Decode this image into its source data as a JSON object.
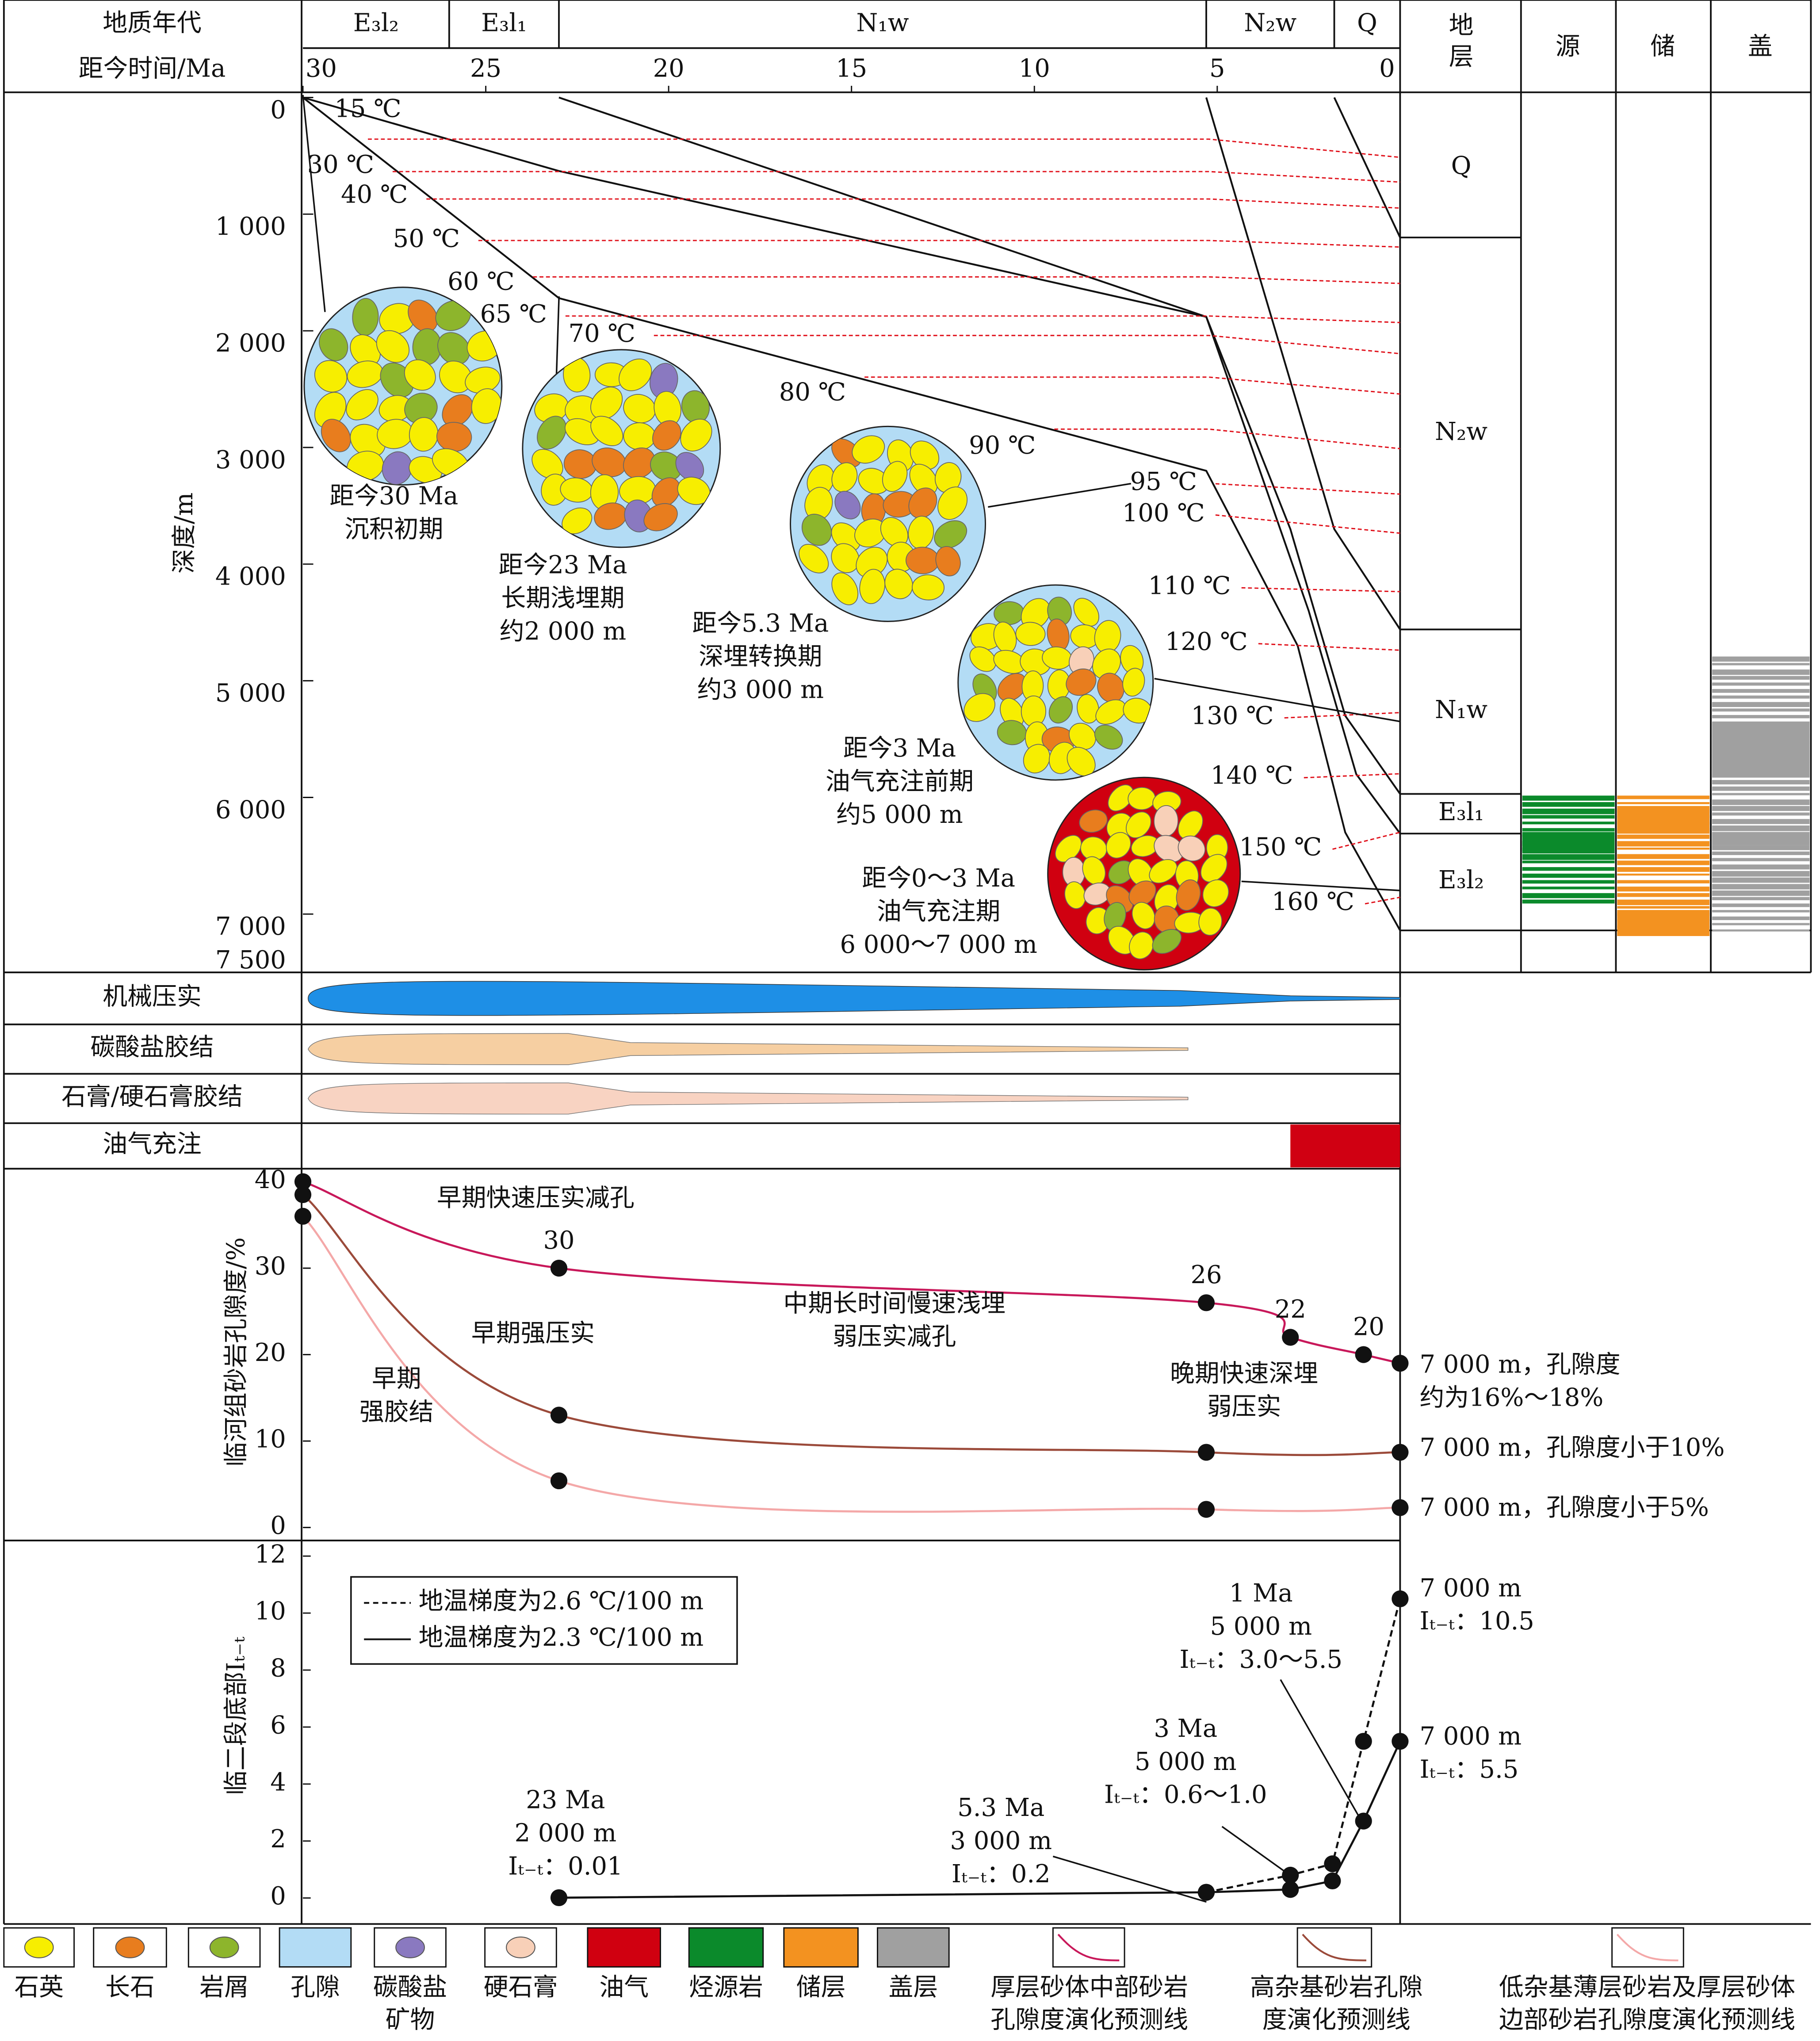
{
  "chart_data": [
    {
      "type": "burial",
      "header_labels": [
        "地质年代",
        "距今时间/Ma"
      ],
      "periods": [
        {
          "label": "E₃l₂",
          "range": [
            30,
            26
          ]
        },
        {
          "label": "E₃l₁",
          "range": [
            26,
            23
          ]
        },
        {
          "label": "N₁w",
          "range": [
            23,
            5.3
          ]
        },
        {
          "label": "N₂w",
          "range": [
            5.3,
            1.8
          ]
        },
        {
          "label": "Q",
          "range": [
            1.8,
            0
          ]
        }
      ],
      "xlim": [
        30,
        0
      ],
      "xticks": [
        30,
        25,
        20,
        15,
        10,
        5,
        0
      ],
      "ylabel": "深度/m",
      "ylim": [
        0,
        7500
      ],
      "yticks": [
        0,
        {
          "value": 1000,
          "label": "1 000"
        },
        {
          "value": 2000,
          "label": "2 000"
        },
        {
          "value": 3000,
          "label": "3 000"
        },
        {
          "value": 4000,
          "label": "4 000"
        },
        {
          "value": 5000,
          "label": "5 000"
        },
        {
          "value": 6000,
          "label": "6 000"
        },
        {
          "value": 7000,
          "label": "7 000"
        },
        {
          "value": 7500,
          "label": "7 500"
        }
      ],
      "series": [
        {
          "x": [
            1.8,
            0
          ],
          "y": [
            0,
            1200
          ]
        },
        {
          "x": [
            5.3,
            1.8,
            0
          ],
          "y": [
            0,
            3700,
            4560
          ]
        },
        {
          "x": [
            23,
            5.3,
            3,
            1.5,
            0
          ],
          "y": [
            0,
            1880,
            3700,
            5300,
            5970
          ]
        },
        {
          "x": [
            30,
            23,
            5.3,
            2.5,
            1.2,
            0
          ],
          "y": [
            0,
            630,
            1880,
            4400,
            5800,
            6310
          ]
        },
        {
          "x": [
            30,
            23,
            5.3,
            2.8,
            1.5,
            0
          ],
          "y": [
            0,
            1720,
            3200,
            4700,
            6300,
            7140
          ]
        }
      ],
      "isotherm_color": "#e0101a",
      "isotherms": [
        {
          "label": "15 ℃",
          "depths": [
            357,
            513
          ]
        },
        {
          "label": "30 ℃",
          "depths": [
            635,
            725
          ]
        },
        {
          "label": "40 ℃",
          "depths": [
            870,
            948
          ]
        },
        {
          "label": "50 ℃",
          "depths": [
            1226,
            1282
          ]
        },
        {
          "label": "60 ℃",
          "depths": [
            1538,
            1594
          ]
        },
        {
          "label": "65 ℃",
          "depths": [
            1873,
            1929
          ]
        },
        {
          "label": "70 ℃",
          "depths": [
            2040,
            2196
          ]
        },
        {
          "label": "80 ℃",
          "depths": [
            2397,
            2542
          ]
        },
        {
          "label": "90 ℃",
          "depths": [
            2843,
            3010
          ]
        },
        {
          "label": "95 ℃",
          "depths": [
            3311,
            3400
          ]
        },
        {
          "label": "100 ℃",
          "depths": [
            3579,
            3735
          ]
        },
        {
          "label": "110 ℃",
          "depths": [
            4203,
            4236
          ]
        },
        {
          "label": "120 ℃",
          "depths": [
            4682,
            4738
          ]
        },
        {
          "label": "130 ℃",
          "depths": [
            5318,
            5273
          ]
        },
        {
          "label": "140 ℃",
          "depths": [
            5831,
            5797
          ]
        },
        {
          "label": "150 ℃",
          "depths": [
            6444,
            6299
          ]
        },
        {
          "label": "160 ℃",
          "depths": [
            6912,
            6856
          ]
        }
      ],
      "samples": [
        {
          "caption": [
            "距今30 Ma",
            "沉积初期"
          ]
        },
        {
          "caption": [
            "距今23 Ma",
            "长期浅埋期",
            "约2 000 m"
          ]
        },
        {
          "caption": [
            "距今5.3 Ma",
            "深埋转换期",
            "约3 000 m"
          ]
        },
        {
          "caption": [
            "距今3 Ma",
            "油气充注前期",
            "约5 000 m"
          ]
        },
        {
          "caption": [
            "距今0～3 Ma",
            "油气充注期",
            "6 000～7 000 m"
          ]
        }
      ],
      "strata_header": [
        "地",
        "层"
      ],
      "columns": [
        "源",
        "储",
        "盖"
      ],
      "strata": [
        {
          "label": "Q",
          "range": [
            0,
            1200
          ]
        },
        {
          "label": "N₂w",
          "range": [
            1200,
            4560
          ]
        },
        {
          "label": "N₁w",
          "range": [
            4560,
            5970
          ]
        },
        {
          "label": "E₃l₁",
          "range": [
            5970,
            6310
          ]
        },
        {
          "label": "E₃l₂",
          "range": [
            6310,
            7140
          ]
        }
      ]
    },
    {
      "type": "process",
      "rows": [
        {
          "label": "机械压实",
          "span": [
            30,
            0
          ],
          "color": "#1e8fe6"
        },
        {
          "label": "碳酸盐胶结",
          "span": [
            30,
            5.8
          ],
          "color": "#f6cfa2"
        },
        {
          "label": "石膏/硬石膏胶结",
          "span": [
            30,
            5.8
          ],
          "color": "#f8d3c2"
        },
        {
          "label": "油气充注",
          "span": [
            3,
            0
          ],
          "color": "#d00012"
        }
      ]
    },
    {
      "type": "line",
      "ylabel": "临河组砂岩孔隙度/%",
      "xlim": [
        30,
        0
      ],
      "ylim": [
        0,
        40
      ],
      "yticks": [
        0,
        10,
        20,
        30,
        40
      ],
      "series": [
        {
          "color": "#c8185a",
          "x": [
            30,
            23,
            5.3,
            3,
            1,
            0
          ],
          "values": [
            40,
            30,
            26,
            22,
            20,
            19
          ],
          "value_labels": [
            null,
            "30",
            "26",
            "22",
            "20",
            null
          ]
        },
        {
          "color": "#9b4a3a",
          "x": [
            30,
            23,
            5.3,
            0
          ],
          "values": [
            38.5,
            13,
            8.7,
            8.7
          ]
        },
        {
          "color": "#f4a8a8",
          "x": [
            30,
            23,
            5.3,
            0
          ],
          "values": [
            36,
            5.4,
            2.1,
            2.3
          ]
        }
      ],
      "annotations": [
        [
          "早期快速压实减孔"
        ],
        [
          "早期强压实"
        ],
        [
          "早期",
          "强胶结"
        ],
        [
          "中期长时间慢速浅埋",
          "弱压实减孔"
        ],
        [
          "晚期快速深埋",
          "弱压实"
        ],
        [
          "7 000 m，孔隙度",
          "约为16%～18%"
        ],
        [
          "7 000 m，孔隙度小于10%"
        ],
        [
          "7 000 m，孔隙度小于5%"
        ]
      ]
    },
    {
      "type": "line",
      "ylabel": "临二段底部Iₜ₋ₜ",
      "xlim": [
        30,
        0
      ],
      "ylim": [
        0,
        12
      ],
      "yticks": [
        0,
        2,
        4,
        6,
        8,
        10,
        12
      ],
      "series": [
        {
          "name": "地温梯度为2.6 ℃/100 m",
          "line_style": "dashed",
          "color": "#111111",
          "x": [
            5.3,
            3,
            1.85,
            1,
            0
          ],
          "values": [
            0.2,
            0.8,
            1.2,
            5.5,
            10.5
          ]
        },
        {
          "name": "地温梯度为2.3 ℃/100 m",
          "line_style": "solid",
          "color": "#111111",
          "x": [
            23,
            5.3,
            3,
            1.85,
            1,
            0
          ],
          "values": [
            0.01,
            0.2,
            0.3,
            0.6,
            2.7,
            5.5
          ]
        }
      ],
      "annotations": [
        [
          "23 Ma",
          "2 000 m",
          "Iₜ₋ₜ：0.01"
        ],
        [
          "5.3 Ma",
          "3 000 m",
          "Iₜ₋ₜ：0.2"
        ],
        [
          "3 Ma",
          "5 000 m",
          "Iₜ₋ₜ：0.6～1.0"
        ],
        [
          "1 Ma",
          "5 000 m",
          "Iₜ₋ₜ：3.0～5.5"
        ],
        [
          "7 000 m",
          "Iₜ₋ₜ：10.5"
        ],
        [
          "7 000 m",
          "Iₜ₋ₜ：5.5"
        ]
      ]
    }
  ],
  "legend": [
    {
      "label": [
        "石英"
      ],
      "shape": "ellipse",
      "color": "#f7ee00"
    },
    {
      "label": [
        "长石"
      ],
      "shape": "ellipse",
      "color": "#e87d1e"
    },
    {
      "label": [
        "岩屑"
      ],
      "shape": "ellipse",
      "color": "#8db52c"
    },
    {
      "label": [
        "孔隙"
      ],
      "shape": "rect",
      "color": "#b3dcf5"
    },
    {
      "label": [
        "碳酸盐",
        "矿物"
      ],
      "shape": "ellipse",
      "color": "#8a79c0"
    },
    {
      "label": [
        "硬石膏"
      ],
      "shape": "ellipse",
      "color": "#f8d0b8"
    },
    {
      "label": [
        "油气"
      ],
      "shape": "rect",
      "color": "#d00010"
    },
    {
      "label": [
        "烃源岩"
      ],
      "shape": "rect",
      "color": "#0b8a2b"
    },
    {
      "label": [
        "储层"
      ],
      "shape": "rect",
      "color": "#f39220"
    },
    {
      "label": [
        "盖层"
      ],
      "shape": "rect",
      "color": "#a0a0a0"
    },
    {
      "label": [
        "厚层砂体中部砂岩",
        "孔隙度演化预测线"
      ],
      "shape": "line",
      "color": "#c8185a"
    },
    {
      "label": [
        "高杂基砂岩孔隙",
        "度演化预测线"
      ],
      "shape": "line",
      "color": "#9b4a3a"
    },
    {
      "label": [
        "低杂基薄层砂岩及厚层砂体",
        "边部砂岩孔隙度演化预测线"
      ],
      "shape": "line",
      "color": "#f4a8a8"
    }
  ]
}
